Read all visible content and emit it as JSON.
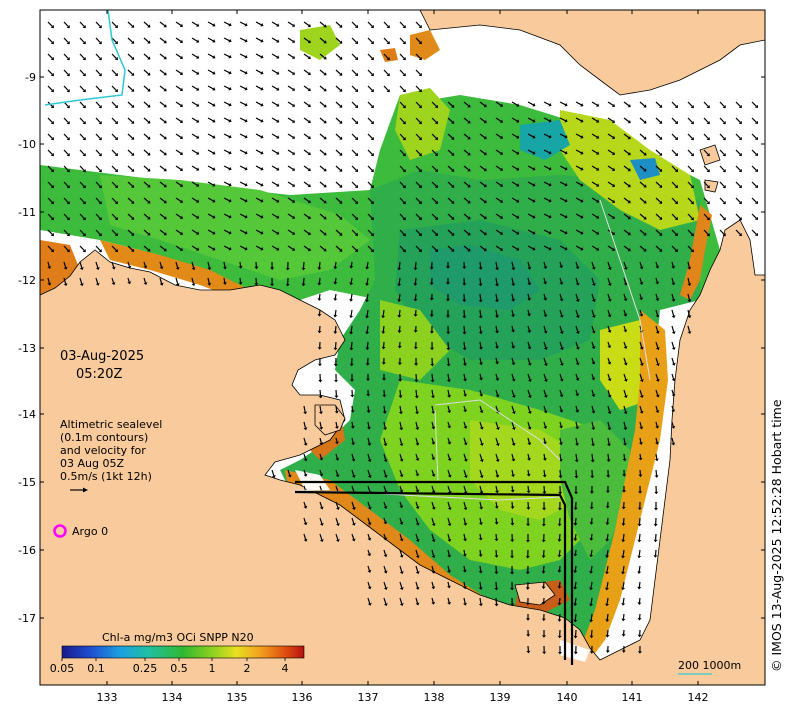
{
  "map": {
    "date_line": "03-Aug-2025",
    "time_line": "05:20Z",
    "altimetry_lines": [
      "Altimetric sealevel",
      "(0.1m contours)",
      "and velocity for",
      "03 Aug 05Z",
      "0.5m/s (1kt 12h)"
    ],
    "argo_label": "Argo 0",
    "credit": "© IMOS 13-Aug-2025 12:52:28 Hobart time",
    "scale_label": "200  1000m",
    "colorbar_title": "Chl-a mg/m3 OCi SNPP N20",
    "colorbar_ticks": [
      "0.05",
      "0.1",
      "0.25",
      "0.5",
      "1",
      "2",
      "4"
    ],
    "lon_ticks": [
      "133",
      "134",
      "135",
      "136",
      "137",
      "138",
      "139",
      "140",
      "141",
      "142"
    ],
    "lat_ticks": [
      "-9",
      "-10",
      "-11",
      "-12",
      "-13",
      "-14",
      "-15",
      "-16",
      "-17"
    ],
    "colors": {
      "land": "#f9cb9c",
      "no_data": "#ffffff",
      "argo_marker": "#ff00ff",
      "scale_line": "#55c8c8"
    }
  }
}
